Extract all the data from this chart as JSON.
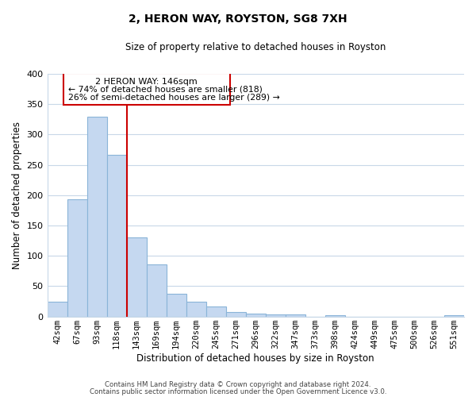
{
  "title": "2, HERON WAY, ROYSTON, SG8 7XH",
  "subtitle": "Size of property relative to detached houses in Royston",
  "xlabel": "Distribution of detached houses by size in Royston",
  "ylabel": "Number of detached properties",
  "bar_labels": [
    "42sqm",
    "67sqm",
    "93sqm",
    "118sqm",
    "143sqm",
    "169sqm",
    "194sqm",
    "220sqm",
    "245sqm",
    "271sqm",
    "296sqm",
    "322sqm",
    "347sqm",
    "373sqm",
    "398sqm",
    "424sqm",
    "449sqm",
    "475sqm",
    "500sqm",
    "526sqm",
    "551sqm"
  ],
  "bar_values": [
    25,
    193,
    330,
    267,
    130,
    86,
    38,
    25,
    17,
    8,
    5,
    4,
    3,
    0,
    2,
    0,
    0,
    0,
    0,
    0,
    2
  ],
  "bar_color": "#c5d8f0",
  "bar_edge_color": "#8ab4d8",
  "ylim": [
    0,
    400
  ],
  "yticks": [
    0,
    50,
    100,
    150,
    200,
    250,
    300,
    350,
    400
  ],
  "property_line_label": "2 HERON WAY: 146sqm",
  "annotation_line1": "← 74% of detached houses are smaller (818)",
  "annotation_line2": "26% of semi-detached houses are larger (289) →",
  "vline_color": "#cc0000",
  "box_color": "#cc0000",
  "footer_line1": "Contains HM Land Registry data © Crown copyright and database right 2024.",
  "footer_line2": "Contains public sector information licensed under the Open Government Licence v3.0.",
  "bg_color": "#ffffff",
  "grid_color": "#c8d8e8"
}
